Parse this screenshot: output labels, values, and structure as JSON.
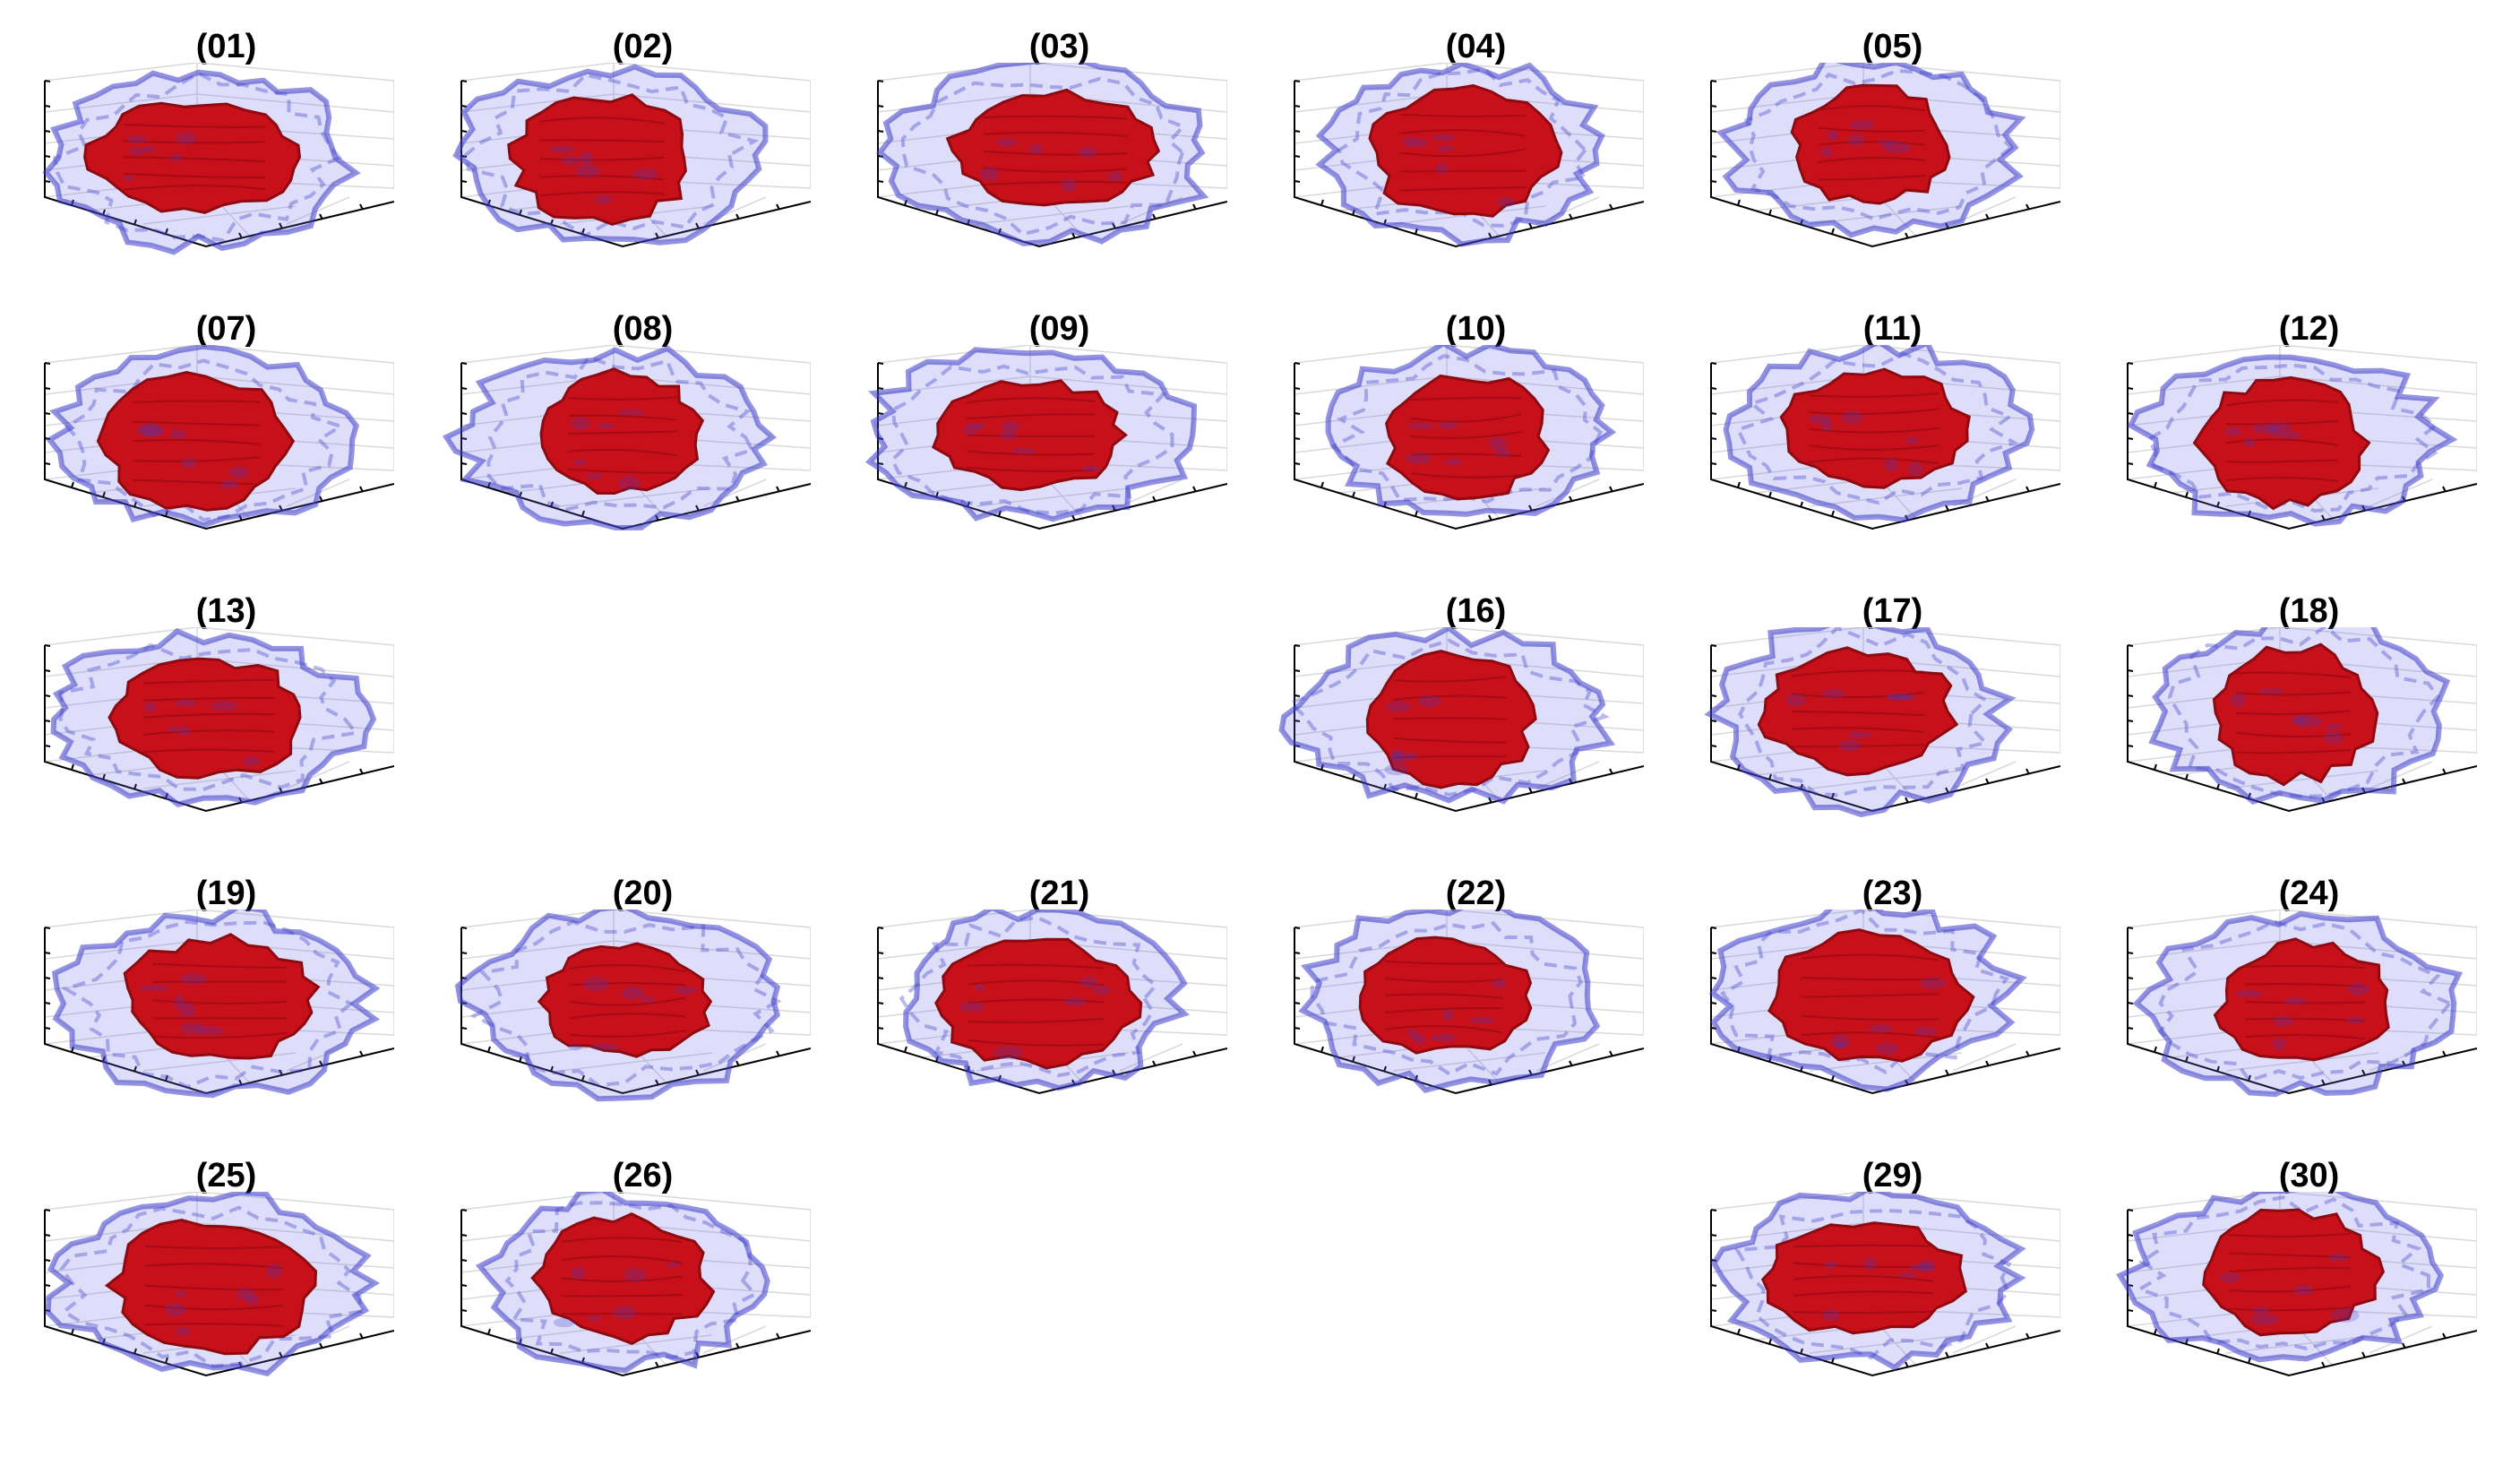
{
  "figure": {
    "colors": {
      "inner_surface": "#c8101a",
      "inner_surface_dark": "#8c0a10",
      "outer_surface_fill": "#6a6ae6",
      "outer_surface_edge": "#3a3ac8",
      "axis_line": "#000000",
      "grid_line": "#d9d9d9"
    },
    "panels": [
      {
        "title": "(01)",
        "row": 0,
        "col": 0
      },
      {
        "title": "(02)",
        "row": 0,
        "col": 1
      },
      {
        "title": "(03)",
        "row": 0,
        "col": 2
      },
      {
        "title": "(04)",
        "row": 0,
        "col": 3
      },
      {
        "title": "(05)",
        "row": 0,
        "col": 4
      },
      {
        "title": "(07)",
        "row": 1,
        "col": 0
      },
      {
        "title": "(08)",
        "row": 1,
        "col": 1
      },
      {
        "title": "(09)",
        "row": 1,
        "col": 2
      },
      {
        "title": "(10)",
        "row": 1,
        "col": 3
      },
      {
        "title": "(11)",
        "row": 1,
        "col": 4
      },
      {
        "title": "(12)",
        "row": 1,
        "col": 5
      },
      {
        "title": "(13)",
        "row": 2,
        "col": 0
      },
      {
        "title": "(16)",
        "row": 2,
        "col": 3
      },
      {
        "title": "(17)",
        "row": 2,
        "col": 4
      },
      {
        "title": "(18)",
        "row": 2,
        "col": 5
      },
      {
        "title": "(19)",
        "row": 3,
        "col": 0
      },
      {
        "title": "(20)",
        "row": 3,
        "col": 1
      },
      {
        "title": "(21)",
        "row": 3,
        "col": 2
      },
      {
        "title": "(22)",
        "row": 3,
        "col": 3
      },
      {
        "title": "(23)",
        "row": 3,
        "col": 4
      },
      {
        "title": "(24)",
        "row": 3,
        "col": 5
      },
      {
        "title": "(25)",
        "row": 4,
        "col": 0
      },
      {
        "title": "(26)",
        "row": 4,
        "col": 1
      },
      {
        "title": "(29)",
        "row": 4,
        "col": 4
      },
      {
        "title": "(30)",
        "row": 4,
        "col": 5
      }
    ]
  }
}
